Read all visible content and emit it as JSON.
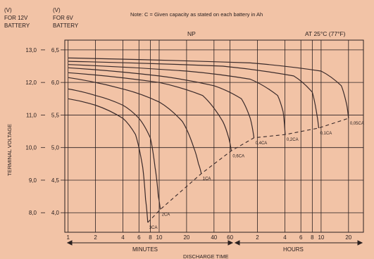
{
  "chart_data": {
    "type": "line",
    "note": "Note: C = Given capacity as stated on each battery in Ah",
    "series_label": "NP",
    "temperature": "AT 25°C (77°F)",
    "y_header_12v": [
      "(V)",
      "FOR 12V",
      "BATTERY"
    ],
    "y_header_6v": [
      "(V)",
      "FOR 6V",
      "BATTERY"
    ],
    "ylabel": "TERMINAL VOLTAGE",
    "xlabel": "DISCHARGE TIME",
    "x_group_minutes": "MINUTES",
    "x_group_hours": "HOURS",
    "x_scale": "log",
    "y_ticks_12v": [
      "13,0",
      "12,0",
      "11,0",
      "10,0",
      "9,0",
      "8,0"
    ],
    "y_ticks_6v": [
      "6,5",
      "6,0",
      "5,5",
      "5,0",
      "4,5",
      "4,0"
    ],
    "ylim_12v": [
      7.4,
      13.3
    ],
    "x_ticks": [
      {
        "label": "1",
        "minutes": 1
      },
      {
        "label": "2",
        "minutes": 2
      },
      {
        "label": "4",
        "minutes": 4
      },
      {
        "label": "6",
        "minutes": 6
      },
      {
        "label": "8",
        "minutes": 8
      },
      {
        "label": "10",
        "minutes": 10
      },
      {
        "label": "20",
        "minutes": 20
      },
      {
        "label": "40",
        "minutes": 40
      },
      {
        "label": "60",
        "minutes": 60
      },
      {
        "label": "2",
        "minutes": 120
      },
      {
        "label": "4",
        "minutes": 240
      },
      {
        "label": "6",
        "minutes": 360
      },
      {
        "label": "8",
        "minutes": 480
      },
      {
        "label": "10",
        "minutes": 600
      },
      {
        "label": "20",
        "minutes": 1200
      }
    ],
    "xlim_minutes": [
      0.92,
      1750
    ],
    "series": [
      {
        "name": "3CA",
        "points": [
          [
            1,
            11.5
          ],
          [
            2,
            11.3
          ],
          [
            4,
            10.9
          ],
          [
            5.5,
            10.4
          ],
          [
            6.6,
            9.4
          ],
          [
            7.1,
            8.4
          ],
          [
            7.5,
            7.7
          ]
        ]
      },
      {
        "name": "2CA",
        "points": [
          [
            1,
            11.8
          ],
          [
            2,
            11.6
          ],
          [
            4,
            11.3
          ],
          [
            6,
            10.9
          ],
          [
            8,
            10.3
          ],
          [
            9,
            9.4
          ],
          [
            9.8,
            8.5
          ],
          [
            10.3,
            8.1
          ]
        ]
      },
      {
        "name": "1CA",
        "points": [
          [
            1,
            12.15
          ],
          [
            4,
            11.8
          ],
          [
            10,
            11.4
          ],
          [
            18,
            10.8
          ],
          [
            24,
            10.0
          ],
          [
            27,
            9.5
          ],
          [
            29,
            9.2
          ]
        ]
      },
      {
        "name": "0,6CA",
        "points": [
          [
            1,
            12.3
          ],
          [
            10,
            12.0
          ],
          [
            30,
            11.6
          ],
          [
            50,
            10.8
          ],
          [
            58,
            10.3
          ],
          [
            62,
            9.9
          ]
        ]
      },
      {
        "name": "0,4CA",
        "points": [
          [
            1,
            12.45
          ],
          [
            10,
            12.2
          ],
          [
            40,
            11.9
          ],
          [
            80,
            11.5
          ],
          [
            100,
            10.9
          ],
          [
            110,
            10.3
          ]
        ]
      },
      {
        "name": "0,2CA",
        "points": [
          [
            1,
            12.55
          ],
          [
            20,
            12.35
          ],
          [
            100,
            12.1
          ],
          [
            200,
            11.6
          ],
          [
            230,
            11.1
          ],
          [
            242,
            10.4
          ]
        ]
      },
      {
        "name": "0,1CA",
        "points": [
          [
            1,
            12.65
          ],
          [
            50,
            12.5
          ],
          [
            300,
            12.2
          ],
          [
            480,
            11.7
          ],
          [
            540,
            11.0
          ],
          [
            565,
            10.6
          ]
        ]
      },
      {
        "name": "0,05CA",
        "points": [
          [
            1,
            12.75
          ],
          [
            100,
            12.6
          ],
          [
            600,
            12.35
          ],
          [
            1000,
            11.9
          ],
          [
            1150,
            11.3
          ],
          [
            1200,
            10.9
          ]
        ]
      }
    ],
    "cutoff_points": [
      [
        7.5,
        7.7
      ],
      [
        10.3,
        8.1
      ],
      [
        29,
        9.2
      ],
      [
        62,
        9.9
      ],
      [
        110,
        10.3
      ],
      [
        242,
        10.4
      ],
      [
        565,
        10.6
      ],
      [
        1200,
        10.9
      ]
    ],
    "grid": true
  }
}
